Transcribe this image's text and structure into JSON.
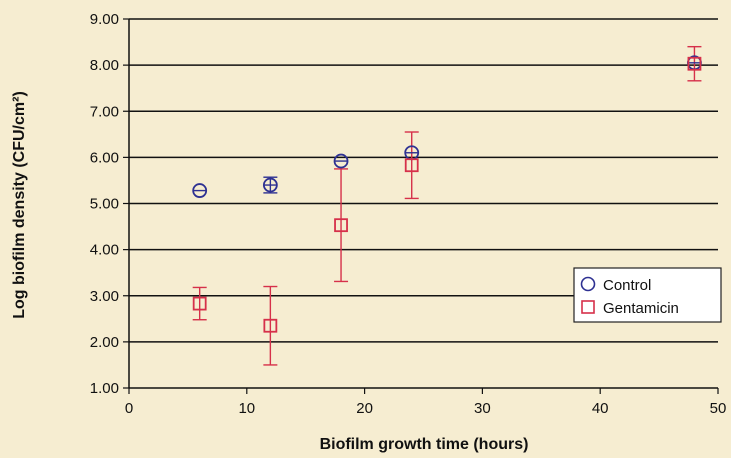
{
  "chart_data": {
    "type": "scatter",
    "title": "",
    "xlabel": "Biofilm growth time (hours)",
    "ylabel": "Log biofilm density (CFU/cm²)",
    "xlim": [
      0,
      50
    ],
    "ylim": [
      1.0,
      9.0
    ],
    "x_ticks": [
      "0",
      "10",
      "20",
      "30",
      "40",
      "50"
    ],
    "y_ticks": [
      "1.00",
      "2.00",
      "3.00",
      "4.00",
      "5.00",
      "6.00",
      "7.00",
      "8.00",
      "9.00"
    ],
    "grid": "horizontal",
    "legend_position": "right",
    "series": [
      {
        "name": "Control",
        "marker": "circle",
        "color": "#2e3192",
        "points": [
          {
            "x": 6,
            "y": 5.28,
            "err": 0.0
          },
          {
            "x": 12,
            "y": 5.4,
            "err": 0.17
          },
          {
            "x": 18,
            "y": 5.92,
            "err": 0.0
          },
          {
            "x": 24,
            "y": 6.1,
            "err": 0.0
          },
          {
            "x": 48,
            "y": 8.05,
            "err": 0.0
          }
        ]
      },
      {
        "name": "Gentamicin",
        "marker": "square",
        "color": "#d6304a",
        "points": [
          {
            "x": 6,
            "y": 2.83,
            "err": 0.35
          },
          {
            "x": 12,
            "y": 2.35,
            "err": 0.85
          },
          {
            "x": 18,
            "y": 4.53,
            "err": 1.22
          },
          {
            "x": 24,
            "y": 5.83,
            "err": 0.72
          },
          {
            "x": 48,
            "y": 8.03,
            "err": 0.37
          }
        ]
      }
    ]
  }
}
